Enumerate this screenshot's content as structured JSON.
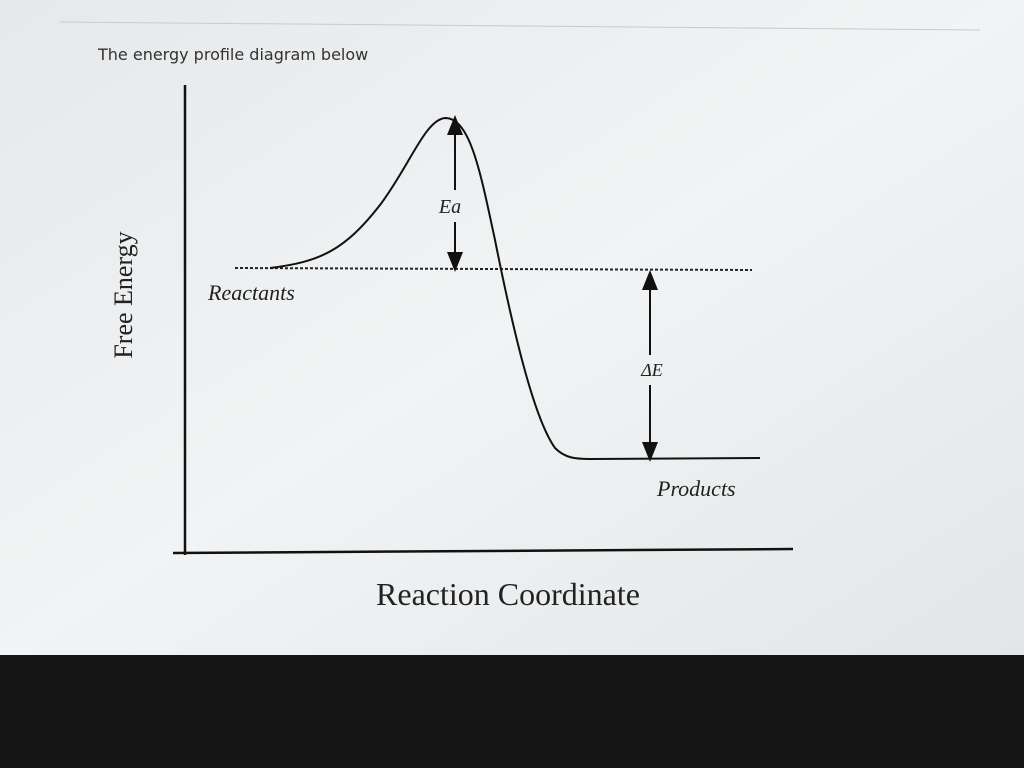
{
  "question": {
    "text": "The energy profile diagram below"
  },
  "diagram": {
    "y_axis_label": "Free Energy",
    "x_axis_label": "Reaction Coordinate",
    "reactants_label": "Reactants",
    "products_label": "Products",
    "activation_label": "Ea",
    "delta_label": "ΔE"
  }
}
